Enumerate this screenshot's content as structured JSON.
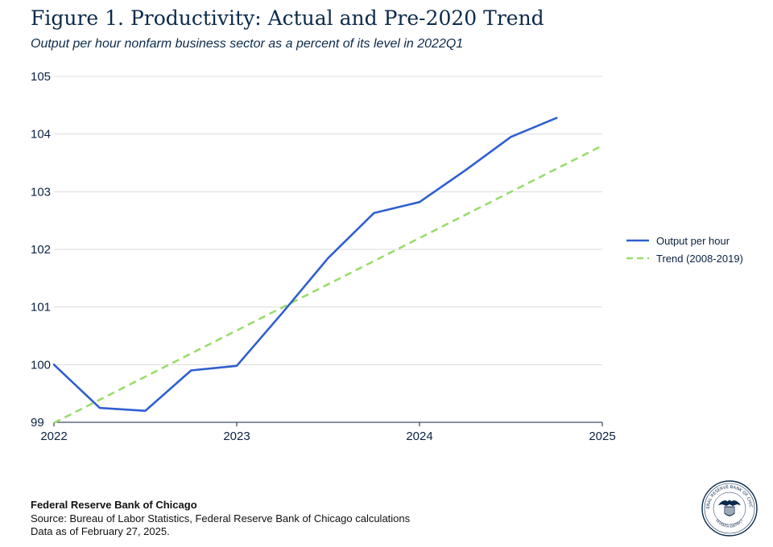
{
  "header": {
    "title": "Figure 1. Productivity: Actual and Pre-2020 Trend",
    "subtitle": "Output per hour nonfarm business sector as a percent of its level in 2022Q1"
  },
  "chart_data": {
    "type": "line",
    "xlim": [
      2022,
      2025
    ],
    "ylim": [
      99,
      105
    ],
    "x_ticks": [
      2022,
      2023,
      2024,
      2025
    ],
    "x_tick_labels": [
      "2022",
      "2023",
      "2024",
      "2025"
    ],
    "y_ticks": [
      99,
      100,
      101,
      102,
      103,
      104,
      105
    ],
    "y_tick_labels": [
      "99",
      "100",
      "101",
      "102",
      "103",
      "104",
      "105"
    ],
    "grid": true,
    "legend_position": "right",
    "series": [
      {
        "name": "Output per hour",
        "style": "solid",
        "color": "#2f5fcf",
        "x": [
          2022.0,
          2022.25,
          2022.5,
          2022.75,
          2023.0,
          2023.25,
          2023.5,
          2023.75,
          2024.0,
          2024.25,
          2024.5,
          2024.75
        ],
        "values": [
          100.0,
          99.25,
          99.2,
          99.9,
          99.98,
          100.9,
          101.85,
          102.63,
          102.82,
          103.37,
          103.95,
          104.28
        ]
      },
      {
        "name": "Trend (2008-2019)",
        "style": "dashed",
        "color": "#9bdc6e",
        "x": [
          2022.0,
          2025.0
        ],
        "values": [
          98.99,
          103.8
        ]
      }
    ]
  },
  "footer": {
    "org": "Federal Reserve Bank of Chicago",
    "source": "Source: Bureau of Labor Statistics, Federal Reserve Bank of Chicago calculations",
    "date": "Data as of February 27, 2025."
  },
  "seal": {
    "top_text": "FEDERAL RESERVE BANK OF CHICAGO",
    "bottom_text": "SEVENTH DISTRICT"
  }
}
